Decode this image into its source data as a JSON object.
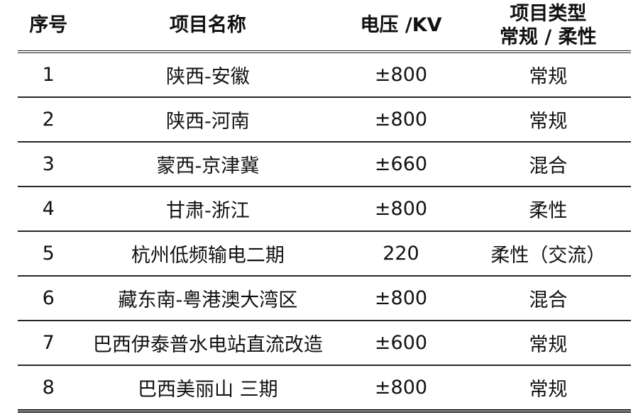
{
  "table": {
    "columns": [
      {
        "key": "index",
        "label": "序号"
      },
      {
        "key": "name",
        "label": "项目名称"
      },
      {
        "key": "voltage",
        "label": "电压 /KV"
      },
      {
        "key": "type",
        "label": "项目类型",
        "label_line2": "常规 / 柔性"
      }
    ],
    "rows": [
      {
        "index": "1",
        "name": "陕西-安徽",
        "voltage": "±800",
        "type": "常规"
      },
      {
        "index": "2",
        "name": "陕西-河南",
        "voltage": "±800",
        "type": "常规"
      },
      {
        "index": "3",
        "name": "蒙西-京津冀",
        "voltage": "±660",
        "type": "混合"
      },
      {
        "index": "4",
        "name": "甘肃-浙江",
        "voltage": "±800",
        "type": "柔性"
      },
      {
        "index": "5",
        "name": "杭州低频输电二期",
        "voltage": "220",
        "type": "柔性（交流）"
      },
      {
        "index": "6",
        "name": "藏东南-粤港澳大湾区",
        "voltage": "±800",
        "type": "混合"
      },
      {
        "index": "7",
        "name": "巴西伊泰普水电站直流改造",
        "voltage": "±600",
        "type": "常规"
      },
      {
        "index": "8",
        "name": "巴西美丽山 三期",
        "voltage": "±800",
        "type": "常规"
      }
    ],
    "colors": {
      "text": "#111111",
      "rule": "#262626",
      "heavy_rule": "#1a1a1a",
      "background": "#ffffff"
    }
  }
}
